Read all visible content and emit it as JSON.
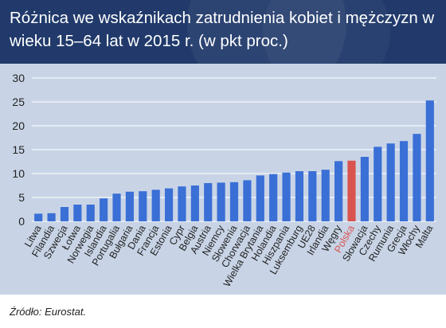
{
  "title": "Różnica we wskaźnikach zatrudnienia kobiet i mężczyzn w wieku 15–64 lat w 2015 r. (w pkt proc.)",
  "source": "Źródło: Eurostat.",
  "colors": {
    "bar": "#3a6fd6",
    "highlight": "#d9534f",
    "background": "#c8d4e6",
    "header": "#213a6b"
  },
  "chart_data": {
    "type": "bar",
    "title": "Różnica we wskaźnikach zatrudnienia kobiet i mężczyzn w wieku 15–64 lat w 2015 r. (w pkt proc.)",
    "xlabel": "",
    "ylabel": "",
    "ylim": [
      0,
      30
    ],
    "yticks": [
      0,
      5,
      10,
      15,
      20,
      25,
      30
    ],
    "grid": true,
    "highlight": "Polska",
    "categories": [
      "Litwa",
      "Filandia",
      "Szwecja",
      "Łotwa",
      "Norwegia",
      "Islandia",
      "Portugalia",
      "Bułgaria",
      "Dania",
      "Francja",
      "Estonia",
      "Cypr",
      "Belgia",
      "Austria",
      "Niemcy",
      "Słowenia",
      "Chorwacja",
      "Wielka Brytania",
      "Holandia",
      "Hiszpania",
      "Luksemburg",
      "UE28",
      "Irlandia",
      "Węgry",
      "Polska",
      "Słowacja",
      "Czechy",
      "Rumunia",
      "Grecja",
      "Włochy",
      "Malta"
    ],
    "values": [
      1.6,
      1.7,
      3.0,
      3.5,
      3.5,
      4.8,
      5.8,
      6.2,
      6.3,
      6.6,
      6.9,
      7.3,
      7.5,
      8.0,
      8.1,
      8.2,
      8.6,
      9.6,
      9.9,
      10.2,
      10.5,
      10.5,
      10.8,
      12.6,
      12.7,
      13.5,
      15.6,
      16.3,
      16.8,
      18.3,
      25.3
    ]
  }
}
